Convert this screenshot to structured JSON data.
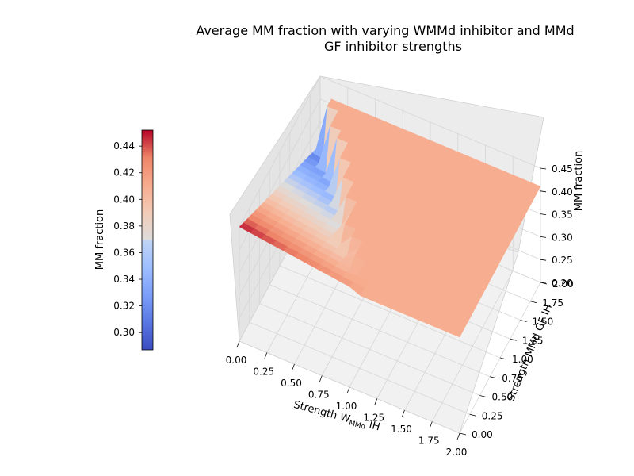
{
  "chart_data": {
    "type": "surface",
    "title": "Average MM fraction with varying WMMd inhibitor and MMd GF inhibitor strengths",
    "title_lines": [
      "Average MM fraction with varying WMMd inhibitor and MMd",
      "GF inhibitor strengths"
    ],
    "xlabel": {
      "main": "Strength W",
      "sub": "MMd",
      "tail": " IH"
    },
    "ylabel": "Strength MMd GF IH",
    "zlabel": "MM fraction",
    "colorbar_label": "MM fraction",
    "x_ticks": [
      "0.00",
      "0.25",
      "0.50",
      "0.75",
      "1.00",
      "1.25",
      "1.50",
      "1.75",
      "2.00"
    ],
    "y_ticks": [
      "0.00",
      "0.25",
      "0.50",
      "0.75",
      "1.00",
      "1.25",
      "1.50",
      "1.75",
      "2.00"
    ],
    "z_ticks": [
      "0.20",
      "0.25",
      "0.30",
      "0.35",
      "0.40",
      "0.45"
    ],
    "colorbar_ticks": [
      "0.30",
      "0.32",
      "0.34",
      "0.36",
      "0.38",
      "0.40",
      "0.42",
      "0.44"
    ],
    "xlim": [
      0,
      2
    ],
    "ylim": [
      0,
      2
    ],
    "zlim": [
      0.2,
      0.45
    ],
    "colormap": "coolwarm",
    "colorbar_range": [
      0.287,
      0.452
    ],
    "plateau_value": 0.41,
    "ridge_peak_value": 0.45,
    "grid": true
  }
}
